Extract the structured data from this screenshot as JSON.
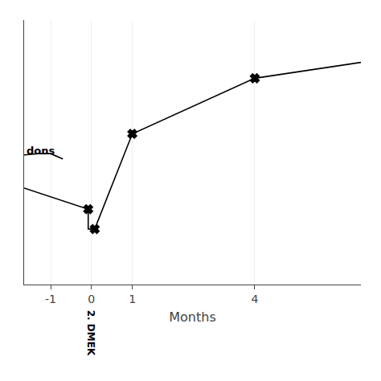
{
  "chart_data": {
    "type": "line",
    "xlabel": "Months",
    "xlim": [
      -1.65,
      6.6
    ],
    "xticks": [
      -1,
      0,
      1,
      4
    ],
    "ylim": [
      0,
      1
    ],
    "tick_labels": "x",
    "grid": true,
    "series": [
      {
        "x": [
          -1.65,
          -1.3,
          -1.0,
          -0.7
        ],
        "values": [
          0.49,
          0.495,
          0.495,
          0.475
        ],
        "color": "#000000"
      },
      {
        "x": [
          -1.65,
          -0.08,
          -0.08,
          0.08,
          1.0,
          4.0,
          6.6
        ],
        "values": [
          0.365,
          0.285,
          0.21,
          0.21,
          0.57,
          0.78,
          0.84
        ],
        "color": "#000000"
      },
      {
        "type": "scatter",
        "marker": "x",
        "x": [
          -0.08,
          0.08,
          1.0,
          4.0
        ],
        "values": [
          0.285,
          0.21,
          0.57,
          0.78
        ],
        "color": "#000000"
      }
    ],
    "annotations": [
      {
        "text": "dons",
        "x": -1.63,
        "y": 0.505
      },
      {
        "text": "2. DMEK",
        "x": 0
      }
    ]
  }
}
